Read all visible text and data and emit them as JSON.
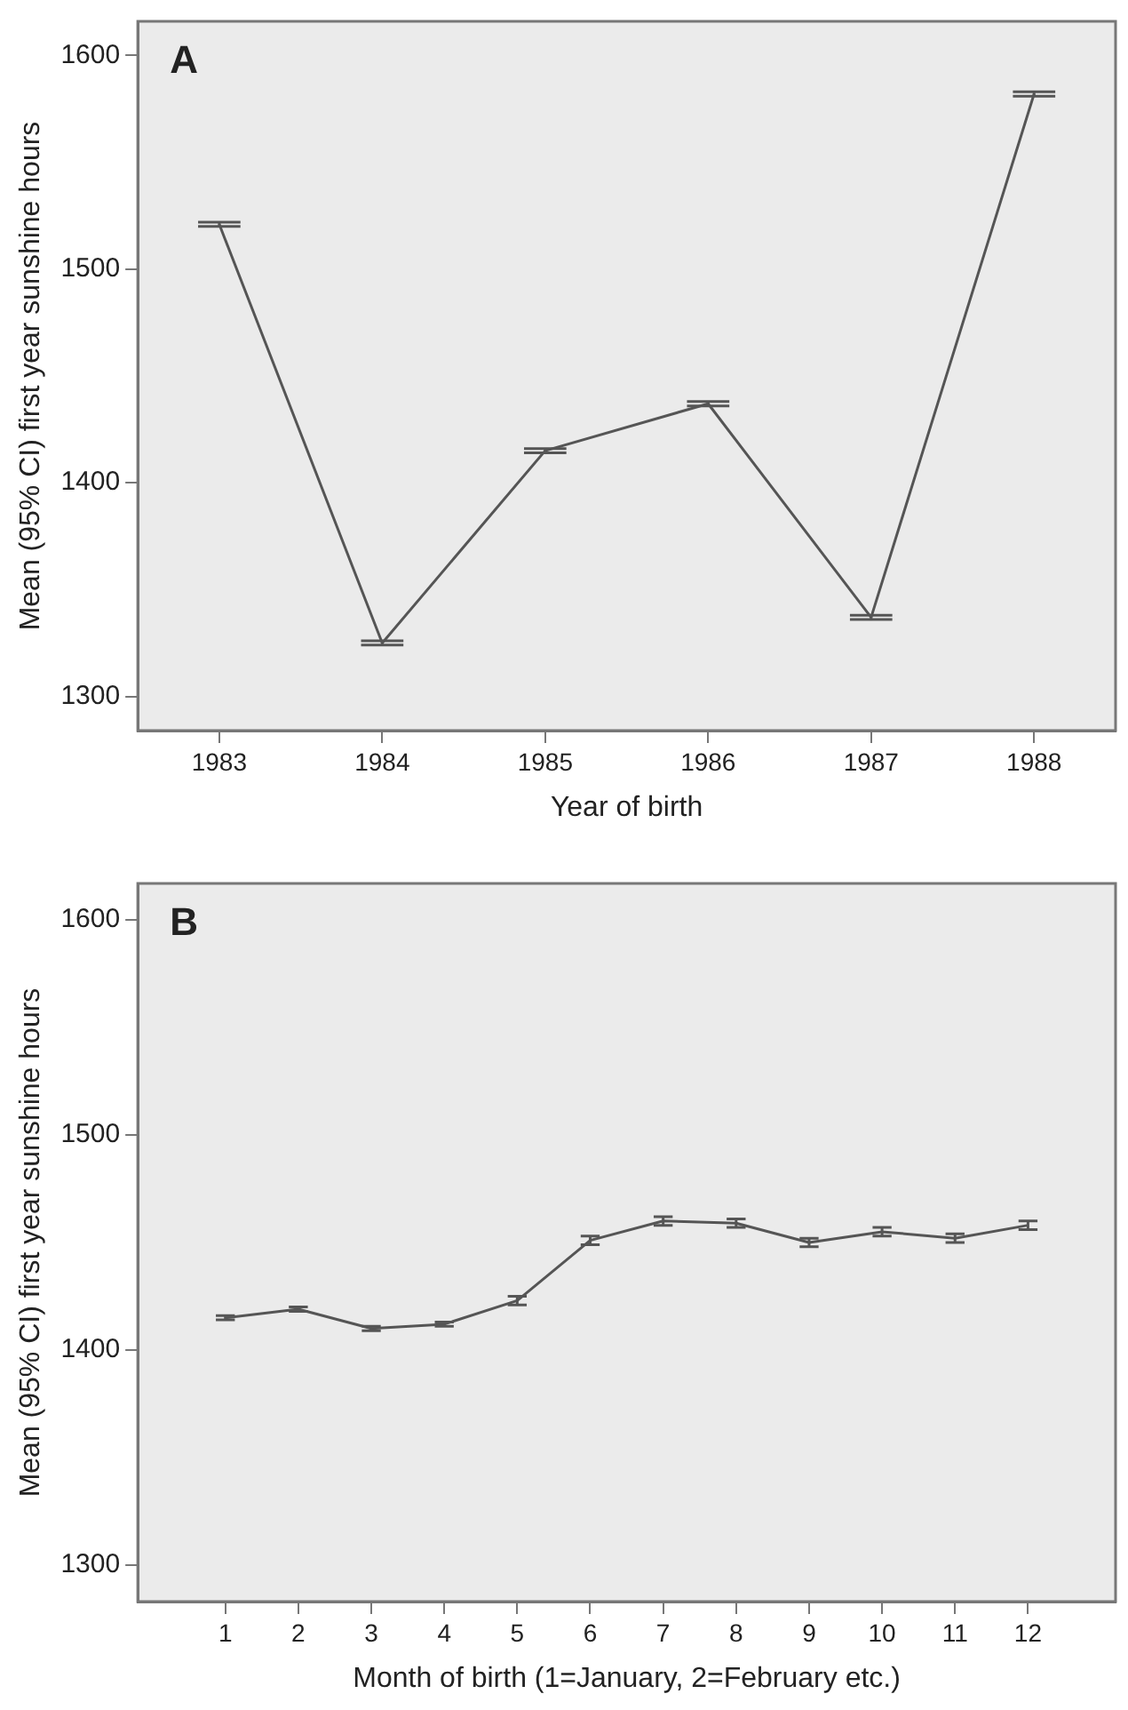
{
  "chart_data": [
    {
      "type": "line",
      "ylabel": "Mean (95% CI) first year sunshine hours",
      "xlabel": "Year of birth",
      "annotations": [
        "A"
      ],
      "categories": [
        "1983",
        "1984",
        "1985",
        "1986",
        "1987",
        "1988"
      ],
      "values": [
        1521,
        1325,
        1415,
        1437,
        1337,
        1582
      ],
      "errors": [
        1,
        1,
        1,
        1,
        1,
        1
      ],
      "color": "#555555",
      "marker": "none",
      "grid": false,
      "ylim": [
        1284,
        1616
      ],
      "yticks": [
        1300,
        1400,
        1500,
        1600
      ]
    },
    {
      "type": "line",
      "ylabel": "Mean (95% CI) first year sunshine hours",
      "xlabel": "Month of birth (1=January, 2=February etc.)",
      "annotations": [
        "B"
      ],
      "x": [
        1,
        2,
        3,
        4,
        5,
        6,
        7,
        8,
        9,
        10,
        11,
        12
      ],
      "xlim": [
        -0.2,
        13.2
      ],
      "xticks": [
        1,
        2,
        3,
        4,
        5,
        6,
        7,
        8,
        9,
        10,
        11,
        12
      ],
      "values": [
        1415,
        1419,
        1410,
        1412,
        1423,
        1451,
        1460,
        1459,
        1450,
        1455,
        1452,
        1458
      ],
      "errors": [
        1,
        1,
        1,
        1,
        2,
        2,
        2,
        2,
        2,
        2,
        2,
        2
      ],
      "color": "#555555",
      "marker": "none",
      "grid": false,
      "ylim": [
        1283,
        1617
      ],
      "yticks": [
        1300,
        1400,
        1500,
        1600
      ]
    }
  ]
}
